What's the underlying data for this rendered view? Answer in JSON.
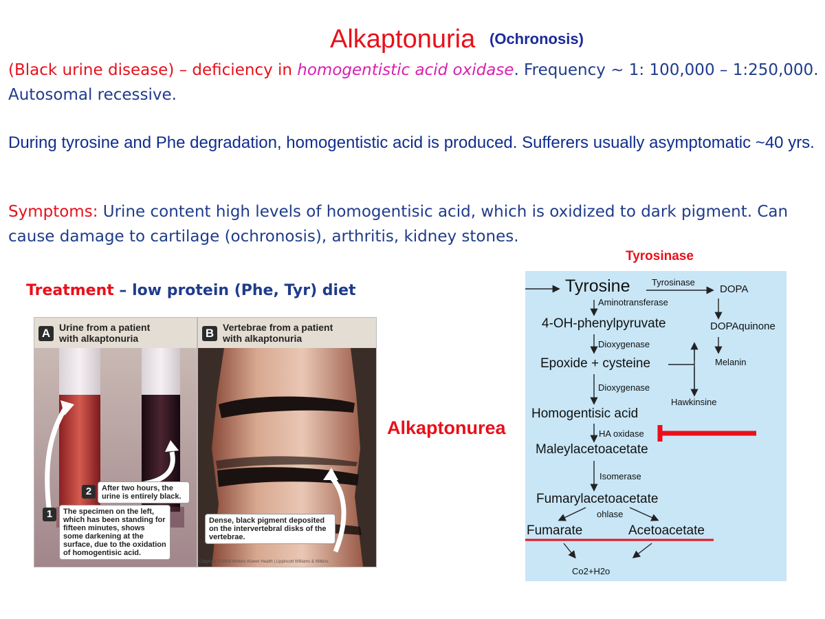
{
  "title": "Alkaptonuria",
  "subtitle": "(Ochronosis)",
  "intro": {
    "part1": "(Black urine disease) – deficiency in ",
    "enzyme": "homogentistic acid oxidase",
    "part2": ". Frequency ~ 1: 100,000 – 1:250,000. Autosomal recessive."
  },
  "degradation_text": "During tyrosine and Phe degradation, homogentistic  acid is produced. Sufferers usually asymptomatic ~40 yrs.",
  "symptoms": {
    "label": "Symptoms:",
    "text": " Urine content high levels of homogentisic acid, which is oxidized to dark pigment. Can cause damage to cartilage (ochronosis),  arthritis, kidney stones."
  },
  "treatment": {
    "label": "Treatment",
    "text": " – low protein (Phe, Tyr) diet"
  },
  "tyrosinase_label": "Tyrosinase",
  "alkaptonurea_label": "Alkaptonurea",
  "panel_a": {
    "letter": "A",
    "title_line1": "Urine from a patient",
    "title_line2": "with alkaptonuria",
    "step2_num": "2",
    "step2_text": "After two hours, the urine is entirely black.",
    "step1_num": "1",
    "step1_text": "The specimen on the left, which has been standing for fifteen minutes, shows some darkening at the surface, due to the oxidation of homogentisic acid."
  },
  "panel_b": {
    "letter": "B",
    "title_line1": "Vertebrae from a patient",
    "title_line2": "with alkaptonuria",
    "caption": "Dense, black pigment deposited on the intervertebral disks of the vertebrae."
  },
  "copyright": "Copyright © 2008 Wolters Kluwer Health | Lippincott Williams & Wilkins",
  "pathway": {
    "tyrosine": "Tyrosine",
    "tyrosinase": "Tyrosinase",
    "dopa": "DOPA",
    "aminotransferase": "Aminotransferase",
    "oh_phenylpyruvate": "4-OH-phenylpyruvate",
    "dopaquinone": "DOPAquinone",
    "dioxygenase1": "Dioxygenase",
    "epoxide": "Epoxide + cysteine",
    "melanin": "Melanin",
    "dioxygenase2": "Dioxygenase",
    "hawkinsine": "Hawkinsine",
    "homogentisic": "Homogentisic acid",
    "ha_oxidase": "HA oxidase",
    "maleylacetoacetate": "Maleylacetoacetate",
    "isomerase": "Isomerase",
    "fumarylacetoacetate": "Fumarylacetoacetate",
    "ohlase": "ohlase",
    "fumarate": "Fumarate",
    "acetoacetate": "Acetoacetate",
    "co2h2o": "Co2+H2o"
  },
  "colors": {
    "red": "#e8101a",
    "blue": "#1f3c8a",
    "magenta": "#d81fb0",
    "pathway_bg": "#c8e6f6"
  }
}
